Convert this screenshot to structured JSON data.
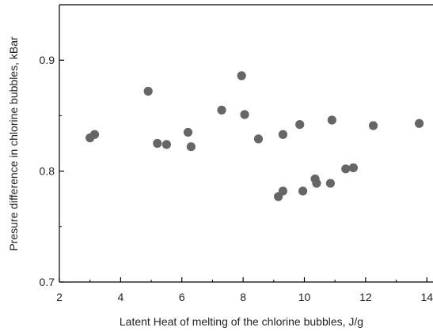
{
  "chart_data": {
    "type": "scatter",
    "title": "",
    "xlabel": "Latent Heat of melting of the chlorine bubbles, J/g",
    "ylabel": "Presure difference in chlorine bubbles, kBar",
    "xlim": [
      2,
      14.2
    ],
    "ylim": [
      0.7,
      0.95
    ],
    "xticks": [
      2,
      4,
      6,
      8,
      10,
      12,
      14
    ],
    "yticks": [
      0.7,
      0.8,
      0.9
    ],
    "xtick_labels": [
      "2",
      "4",
      "6",
      "8",
      "10",
      "12",
      "14"
    ],
    "ytick_labels": [
      "0.7",
      "0.8",
      "0.9"
    ],
    "grid": false,
    "marker_color": "#666666",
    "points": [
      {
        "x": 3.0,
        "y": 0.83
      },
      {
        "x": 3.15,
        "y": 0.833
      },
      {
        "x": 4.9,
        "y": 0.872
      },
      {
        "x": 5.2,
        "y": 0.825
      },
      {
        "x": 5.5,
        "y": 0.824
      },
      {
        "x": 6.2,
        "y": 0.835
      },
      {
        "x": 6.3,
        "y": 0.822
      },
      {
        "x": 7.3,
        "y": 0.855
      },
      {
        "x": 7.95,
        "y": 0.886
      },
      {
        "x": 8.05,
        "y": 0.851
      },
      {
        "x": 8.5,
        "y": 0.829
      },
      {
        "x": 9.15,
        "y": 0.777
      },
      {
        "x": 9.3,
        "y": 0.782
      },
      {
        "x": 9.3,
        "y": 0.833
      },
      {
        "x": 9.85,
        "y": 0.842
      },
      {
        "x": 9.95,
        "y": 0.782
      },
      {
        "x": 10.35,
        "y": 0.793
      },
      {
        "x": 10.4,
        "y": 0.789
      },
      {
        "x": 10.85,
        "y": 0.789
      },
      {
        "x": 10.9,
        "y": 0.846
      },
      {
        "x": 11.35,
        "y": 0.802
      },
      {
        "x": 11.6,
        "y": 0.803
      },
      {
        "x": 12.25,
        "y": 0.841
      },
      {
        "x": 13.75,
        "y": 0.843
      }
    ]
  }
}
